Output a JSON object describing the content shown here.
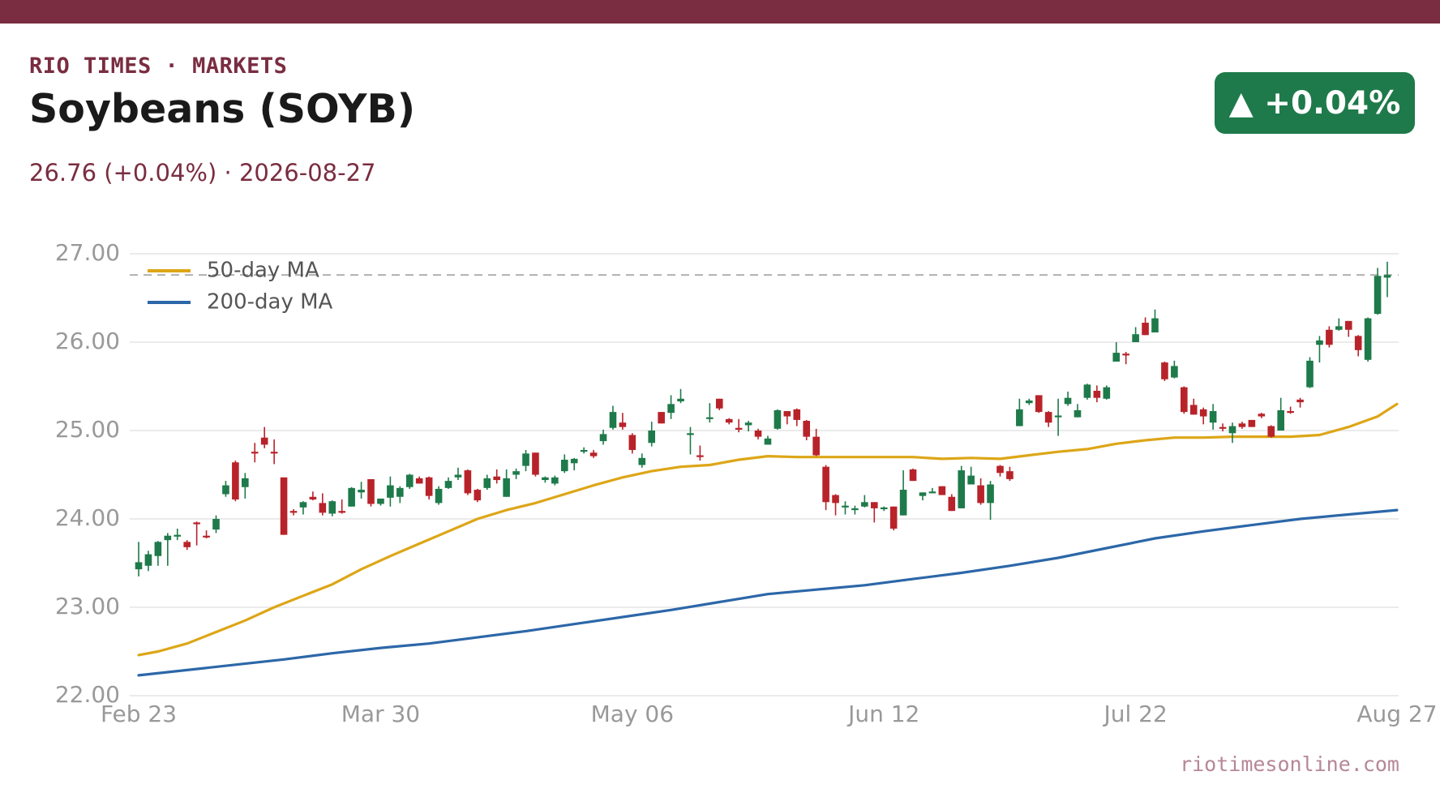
{
  "header": {
    "kicker": "RIO TIMES · MARKETS",
    "title": "Soybeans (SOYB)",
    "subtitle": "26.76 (+0.04%)  ·  2026-08-27",
    "badge": "▲ +0.04%"
  },
  "footer": {
    "source": "riotimesonline.com"
  },
  "colors": {
    "brand": "#7a2d40",
    "up": "#1e7a4a",
    "down": "#b8232a",
    "ma50": "#dda617",
    "ma200": "#2c67a8",
    "grid": "#ebebeb",
    "axis_text": "#999999",
    "reference_line": "#b0b0b0"
  },
  "chart_data": {
    "type": "candlestick",
    "title": "",
    "xlabel": "",
    "ylabel": "",
    "ylim": [
      22.0,
      27.0
    ],
    "yticks": [
      22,
      23,
      24,
      25,
      26,
      27
    ],
    "ytick_labels": [
      "22.00",
      "23.00",
      "24.00",
      "25.00",
      "26.00",
      "27.00"
    ],
    "xticks": [
      {
        "label": "Feb 23",
        "index": 0
      },
      {
        "label": "Mar 30",
        "index": 25
      },
      {
        "label": "May 06",
        "index": 51
      },
      {
        "label": "Jun 12",
        "index": 77
      },
      {
        "label": "Jul 22",
        "index": 103
      },
      {
        "label": "Aug 27",
        "index": 130
      }
    ],
    "grid": true,
    "legend": {
      "placement": "top-left",
      "entries": [
        "50-day MA",
        "200-day MA"
      ]
    },
    "last_price_line": 26.76,
    "candles": [
      [
        23.43,
        23.51,
        23.35,
        23.74
      ],
      [
        23.47,
        23.6,
        23.41,
        23.64
      ],
      [
        23.58,
        23.74,
        23.47,
        23.75
      ],
      [
        23.76,
        23.81,
        23.47,
        23.84
      ],
      [
        23.81,
        23.82,
        23.76,
        23.89
      ],
      [
        23.74,
        23.68,
        23.65,
        23.76
      ],
      [
        23.96,
        23.95,
        23.7,
        23.97
      ],
      [
        23.81,
        23.8,
        23.78,
        23.87
      ],
      [
        23.88,
        24.0,
        23.84,
        24.04
      ],
      [
        24.28,
        24.38,
        24.25,
        24.43
      ],
      [
        24.64,
        24.22,
        24.2,
        24.66
      ],
      [
        24.36,
        24.46,
        24.23,
        24.52
      ],
      [
        24.76,
        24.74,
        24.64,
        24.86
      ],
      [
        24.92,
        24.84,
        24.8,
        25.04
      ],
      [
        24.76,
        24.75,
        24.62,
        24.9
      ],
      [
        24.47,
        23.82,
        23.82,
        24.47
      ],
      [
        24.09,
        24.07,
        24.04,
        24.11
      ],
      [
        24.13,
        24.19,
        24.05,
        24.2
      ],
      [
        24.25,
        24.22,
        24.21,
        24.31
      ],
      [
        24.18,
        24.07,
        24.04,
        24.29
      ],
      [
        24.06,
        24.2,
        24.03,
        24.21
      ],
      [
        24.09,
        24.07,
        24.06,
        24.22
      ],
      [
        24.14,
        24.35,
        24.14,
        24.36
      ],
      [
        24.3,
        24.33,
        24.23,
        24.42
      ],
      [
        24.45,
        24.17,
        24.14,
        24.45
      ],
      [
        24.17,
        24.23,
        24.15,
        24.23
      ],
      [
        24.24,
        24.38,
        24.14,
        24.48
      ],
      [
        24.25,
        24.35,
        24.18,
        24.37
      ],
      [
        24.36,
        24.5,
        24.34,
        24.51
      ],
      [
        24.46,
        24.4,
        24.4,
        24.48
      ],
      [
        24.47,
        24.26,
        24.22,
        24.48
      ],
      [
        24.18,
        24.34,
        24.16,
        24.37
      ],
      [
        24.35,
        24.43,
        24.34,
        24.47
      ],
      [
        24.47,
        24.5,
        24.44,
        24.58
      ],
      [
        24.55,
        24.29,
        24.27,
        24.56
      ],
      [
        24.33,
        24.21,
        24.19,
        24.34
      ],
      [
        24.35,
        24.46,
        24.33,
        24.5
      ],
      [
        24.48,
        24.44,
        24.4,
        24.56
      ],
      [
        24.25,
        24.46,
        24.25,
        24.56
      ],
      [
        24.5,
        24.54,
        24.45,
        24.57
      ],
      [
        24.6,
        24.74,
        24.54,
        24.78
      ],
      [
        24.75,
        24.5,
        24.48,
        24.75
      ],
      [
        24.44,
        24.47,
        24.41,
        24.48
      ],
      [
        24.4,
        24.47,
        24.38,
        24.49
      ],
      [
        24.54,
        24.67,
        24.52,
        24.73
      ],
      [
        24.63,
        24.68,
        24.55,
        24.69
      ],
      [
        24.76,
        24.78,
        24.74,
        24.81
      ],
      [
        24.75,
        24.71,
        24.69,
        24.78
      ],
      [
        24.88,
        24.96,
        24.84,
        25.01
      ],
      [
        25.03,
        25.21,
        25.01,
        25.28
      ],
      [
        25.09,
        25.04,
        25.01,
        25.2
      ],
      [
        24.95,
        24.78,
        24.74,
        24.97
      ],
      [
        24.61,
        24.69,
        24.58,
        24.74
      ],
      [
        24.86,
        25.0,
        24.82,
        25.1
      ],
      [
        25.21,
        25.08,
        25.08,
        25.21
      ],
      [
        25.2,
        25.3,
        25.13,
        25.4
      ],
      [
        25.33,
        25.36,
        25.31,
        25.47
      ],
      [
        24.95,
        24.97,
        24.73,
        25.04
      ],
      [
        24.72,
        24.71,
        24.66,
        24.83
      ],
      [
        25.13,
        25.15,
        25.09,
        25.31
      ],
      [
        25.36,
        25.25,
        25.23,
        25.36
      ],
      [
        25.13,
        25.09,
        25.07,
        25.14
      ],
      [
        25.03,
        25.01,
        24.98,
        25.13
      ],
      [
        25.06,
        25.09,
        24.99,
        25.11
      ],
      [
        25.0,
        24.93,
        24.9,
        25.02
      ],
      [
        24.84,
        24.91,
        24.84,
        24.94
      ],
      [
        25.02,
        25.23,
        25.01,
        25.24
      ],
      [
        25.22,
        25.16,
        25.07,
        25.22
      ],
      [
        25.24,
        25.12,
        25.05,
        25.25
      ],
      [
        25.11,
        24.93,
        24.89,
        25.12
      ],
      [
        24.93,
        24.72,
        24.71,
        25.02
      ],
      [
        24.59,
        24.19,
        24.1,
        24.61
      ],
      [
        24.27,
        24.18,
        24.04,
        24.28
      ],
      [
        24.14,
        24.15,
        24.05,
        24.2
      ],
      [
        24.1,
        24.12,
        24.05,
        24.15
      ],
      [
        24.14,
        24.19,
        24.13,
        24.27
      ],
      [
        24.19,
        24.12,
        23.96,
        24.19
      ],
      [
        24.12,
        24.13,
        24.09,
        24.14
      ],
      [
        24.14,
        23.89,
        23.87,
        24.14
      ],
      [
        24.04,
        24.33,
        24.04,
        24.55
      ],
      [
        24.56,
        24.43,
        24.43,
        24.57
      ],
      [
        24.26,
        24.3,
        24.21,
        24.3
      ],
      [
        24.31,
        24.31,
        24.3,
        24.35
      ],
      [
        24.37,
        24.27,
        24.27,
        24.37
      ],
      [
        24.25,
        24.09,
        24.09,
        24.28
      ],
      [
        24.12,
        24.55,
        24.12,
        24.6
      ],
      [
        24.39,
        24.49,
        24.39,
        24.59
      ],
      [
        24.38,
        24.18,
        24.16,
        24.46
      ],
      [
        24.18,
        24.39,
        23.99,
        24.43
      ],
      [
        24.6,
        24.52,
        24.48,
        24.61
      ],
      [
        24.54,
        24.45,
        24.43,
        24.59
      ],
      [
        25.05,
        25.24,
        25.05,
        25.36
      ],
      [
        25.31,
        25.34,
        25.29,
        25.36
      ],
      [
        25.4,
        25.21,
        25.2,
        25.4
      ],
      [
        25.21,
        25.09,
        25.04,
        25.22
      ],
      [
        25.16,
        25.17,
        24.94,
        25.36
      ],
      [
        25.3,
        25.37,
        25.28,
        25.44
      ],
      [
        25.15,
        25.23,
        25.15,
        25.3
      ],
      [
        25.37,
        25.52,
        25.35,
        25.53
      ],
      [
        25.45,
        25.37,
        25.32,
        25.51
      ],
      [
        25.36,
        25.49,
        25.35,
        25.51
      ],
      [
        25.78,
        25.88,
        25.78,
        26.0
      ],
      [
        25.87,
        25.86,
        25.75,
        25.89
      ],
      [
        26.0,
        26.09,
        26.0,
        26.17
      ],
      [
        26.22,
        26.08,
        26.08,
        26.28
      ],
      [
        26.11,
        26.27,
        26.11,
        26.37
      ],
      [
        25.77,
        25.58,
        25.56,
        25.78
      ],
      [
        25.6,
        25.73,
        25.59,
        25.79
      ],
      [
        25.49,
        25.21,
        25.19,
        25.5
      ],
      [
        25.29,
        25.18,
        25.18,
        25.36
      ],
      [
        25.24,
        25.16,
        25.07,
        25.26
      ],
      [
        25.09,
        25.22,
        25.01,
        25.3
      ],
      [
        25.04,
        25.02,
        24.99,
        25.08
      ],
      [
        24.97,
        25.05,
        24.86,
        25.09
      ],
      [
        25.08,
        25.04,
        25.02,
        25.1
      ],
      [
        25.12,
        25.04,
        25.04,
        25.12
      ],
      [
        25.19,
        25.16,
        25.14,
        25.2
      ],
      [
        25.05,
        24.93,
        24.92,
        25.06
      ],
      [
        25.0,
        25.23,
        25.0,
        25.37
      ],
      [
        25.22,
        25.2,
        25.19,
        25.27
      ],
      [
        25.35,
        25.32,
        25.26,
        25.37
      ],
      [
        25.49,
        25.79,
        25.48,
        25.83
      ],
      [
        25.97,
        26.02,
        25.77,
        26.07
      ],
      [
        26.14,
        25.97,
        25.94,
        26.18
      ],
      [
        26.14,
        26.18,
        26.13,
        26.27
      ],
      [
        26.24,
        26.14,
        26.06,
        26.24
      ],
      [
        26.07,
        25.91,
        25.84,
        26.08
      ],
      [
        25.8,
        26.27,
        25.78,
        26.28
      ],
      [
        26.32,
        26.75,
        26.31,
        26.84
      ],
      [
        26.73,
        26.76,
        26.51,
        26.91
      ]
    ],
    "series": [
      {
        "name": "50-day MA",
        "anchors": [
          [
            0,
            22.46
          ],
          [
            2,
            22.5
          ],
          [
            5,
            22.59
          ],
          [
            8,
            22.72
          ],
          [
            11,
            22.85
          ],
          [
            14,
            23.0
          ],
          [
            17,
            23.13
          ],
          [
            20,
            23.26
          ],
          [
            23,
            23.43
          ],
          [
            26,
            23.58
          ],
          [
            29,
            23.72
          ],
          [
            32,
            23.86
          ],
          [
            35,
            24.0
          ],
          [
            38,
            24.1
          ],
          [
            41,
            24.18
          ],
          [
            44,
            24.28
          ],
          [
            47,
            24.38
          ],
          [
            50,
            24.47
          ],
          [
            53,
            24.54
          ],
          [
            56,
            24.59
          ],
          [
            59,
            24.61
          ],
          [
            62,
            24.67
          ],
          [
            65,
            24.71
          ],
          [
            68,
            24.7
          ],
          [
            71,
            24.7
          ],
          [
            74,
            24.7
          ],
          [
            77,
            24.7
          ],
          [
            80,
            24.7
          ],
          [
            83,
            24.68
          ],
          [
            86,
            24.69
          ],
          [
            89,
            24.68
          ],
          [
            92,
            24.72
          ],
          [
            95,
            24.76
          ],
          [
            98,
            24.79
          ],
          [
            101,
            24.85
          ],
          [
            104,
            24.89
          ],
          [
            107,
            24.92
          ],
          [
            110,
            24.92
          ],
          [
            113,
            24.93
          ],
          [
            116,
            24.93
          ],
          [
            119,
            24.93
          ],
          [
            122,
            24.95
          ],
          [
            125,
            25.04
          ],
          [
            128,
            25.16
          ],
          [
            130,
            25.3
          ]
        ]
      },
      {
        "name": "200-day MA",
        "anchors": [
          [
            0,
            22.23
          ],
          [
            5,
            22.29
          ],
          [
            10,
            22.35
          ],
          [
            15,
            22.41
          ],
          [
            20,
            22.48
          ],
          [
            25,
            22.54
          ],
          [
            30,
            22.59
          ],
          [
            35,
            22.66
          ],
          [
            40,
            22.73
          ],
          [
            45,
            22.81
          ],
          [
            50,
            22.89
          ],
          [
            55,
            22.97
          ],
          [
            60,
            23.06
          ],
          [
            65,
            23.15
          ],
          [
            70,
            23.2
          ],
          [
            75,
            23.25
          ],
          [
            80,
            23.32
          ],
          [
            85,
            23.39
          ],
          [
            90,
            23.47
          ],
          [
            95,
            23.56
          ],
          [
            100,
            23.67
          ],
          [
            105,
            23.78
          ],
          [
            110,
            23.86
          ],
          [
            115,
            23.93
          ],
          [
            120,
            24.0
          ],
          [
            125,
            24.05
          ],
          [
            130,
            24.1
          ]
        ]
      }
    ]
  }
}
